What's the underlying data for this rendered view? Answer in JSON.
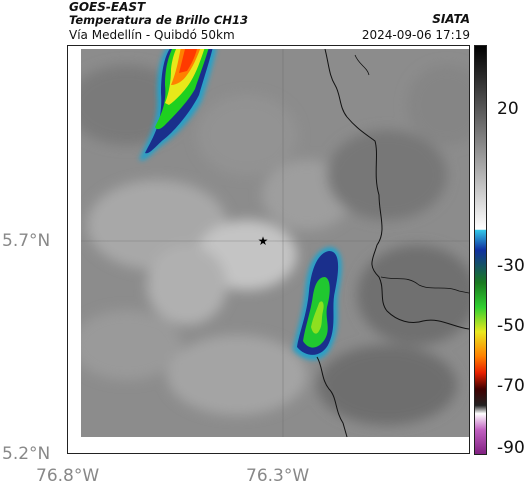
{
  "header": {
    "title": "GOES-EAST",
    "subtitle": "Temperatura de Brillo CH13",
    "route": "Vía Medellín - Quibdó 50km",
    "organization": "SIATA",
    "datetime": "2024-09-06 17:19"
  },
  "axes": {
    "x_ticks": [
      "76.8°W",
      "76.3°W"
    ],
    "y_ticks": [
      "5.7°N",
      "5.2°N"
    ]
  },
  "colorbar": {
    "ticks": [
      "20",
      "-30",
      "-50",
      "-70",
      "-90"
    ]
  },
  "colors": {
    "background_gray": "#8a8a8a",
    "cold_core": "#ff4000",
    "deep_blue": "#1030a0"
  },
  "marker": {
    "symbol": "★"
  }
}
